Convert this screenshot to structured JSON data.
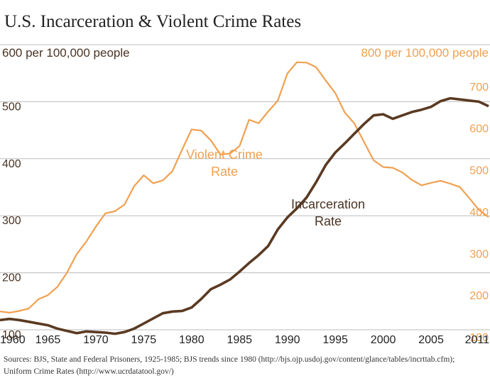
{
  "chart_data": {
    "type": "line",
    "title": "U.S. Incarceration & Violent Crime Rates",
    "left_axis": {
      "unit_label": "600 per 100,000 people",
      "ticks": [
        "500",
        "400",
        "300",
        "200",
        "100"
      ],
      "values": [
        500,
        400,
        300,
        200,
        100
      ],
      "range": [
        100,
        600
      ]
    },
    "right_axis": {
      "unit_label": "800 per 100,000 people",
      "ticks": [
        "700",
        "600",
        "500",
        "400",
        "300",
        "200",
        "100"
      ],
      "values": [
        700,
        600,
        500,
        400,
        300,
        200,
        100
      ],
      "range": [
        100,
        800
      ]
    },
    "x_ticks": [
      "1960",
      "1965",
      "1970",
      "1975",
      "1980",
      "1985",
      "1990",
      "1995",
      "2000",
      "2005",
      "2011"
    ],
    "x_tick_values": [
      1960,
      1965,
      1970,
      1975,
      1980,
      1985,
      1990,
      1995,
      2000,
      2005,
      2011
    ],
    "xlim": [
      1960,
      2011
    ],
    "grid": true,
    "series": [
      {
        "name": "Violent Crime Rate",
        "name_lines": [
          "Violent Crime",
          "Rate"
        ],
        "axis": "right",
        "color": "#f0a050",
        "x": [
          1960,
          1961,
          1962,
          1963,
          1964,
          1965,
          1966,
          1967,
          1968,
          1969,
          1970,
          1971,
          1972,
          1973,
          1974,
          1975,
          1976,
          1977,
          1978,
          1979,
          1980,
          1981,
          1982,
          1983,
          1984,
          1985,
          1986,
          1987,
          1988,
          1989,
          1990,
          1991,
          1992,
          1993,
          1994,
          1995,
          1996,
          1997,
          1998,
          1999,
          2000,
          2001,
          2002,
          2003,
          2004,
          2005,
          2006,
          2007,
          2008,
          2009,
          2010,
          2011
        ],
        "y": [
          161,
          158,
          162,
          168,
          190,
          200,
          220,
          254,
          298,
          328,
          364,
          396,
          401,
          417,
          461,
          487,
          468,
          475,
          497,
          548,
          597,
          594,
          571,
          537,
          539,
          557,
          620,
          612,
          640,
          666,
          731,
          758,
          757,
          746,
          714,
          684,
          637,
          611,
          567,
          523,
          507,
          505,
          494,
          476,
          463,
          469,
          474,
          467,
          459,
          432,
          404,
          387
        ]
      },
      {
        "name": "Incarceration Rate",
        "name_lines": [
          "Incarceration",
          "Rate"
        ],
        "axis": "left",
        "color": "#5a3a22",
        "x": [
          1960,
          1961,
          1962,
          1963,
          1964,
          1965,
          1966,
          1967,
          1968,
          1969,
          1970,
          1971,
          1972,
          1973,
          1974,
          1975,
          1976,
          1977,
          1978,
          1979,
          1980,
          1981,
          1982,
          1983,
          1984,
          1985,
          1986,
          1987,
          1988,
          1989,
          1990,
          1991,
          1992,
          1993,
          1994,
          1995,
          1996,
          1997,
          1998,
          1999,
          2000,
          2001,
          2002,
          2003,
          2004,
          2005,
          2006,
          2007,
          2008,
          2009,
          2010,
          2011
        ],
        "y": [
          117,
          119,
          117,
          114,
          111,
          108,
          102,
          98,
          94,
          97,
          96,
          95,
          93,
          96,
          102,
          111,
          120,
          129,
          132,
          133,
          139,
          154,
          171,
          179,
          188,
          202,
          217,
          231,
          247,
          276,
          297,
          313,
          332,
          359,
          389,
          411,
          427,
          444,
          461,
          476,
          478,
          470,
          476,
          482,
          486,
          491,
          501,
          506,
          504,
          502,
          500,
          492
        ]
      }
    ]
  },
  "footer": {
    "source_line1": "Sources: BJS, State and Federal Prisoners, 1925-1985; BJS trends since 1980 (http://bjs.ojp.usdoj.gov/content/glance/tables/incrttab.cfm);",
    "source_line2": "Uniform Crime Rates (http://www.ucrdatatool.gov/)"
  },
  "colors": {
    "crime": "#f0a050",
    "incarceration": "#5a3a22",
    "left_axis_text": "#4a3424",
    "grid": "#bbbbbb"
  }
}
